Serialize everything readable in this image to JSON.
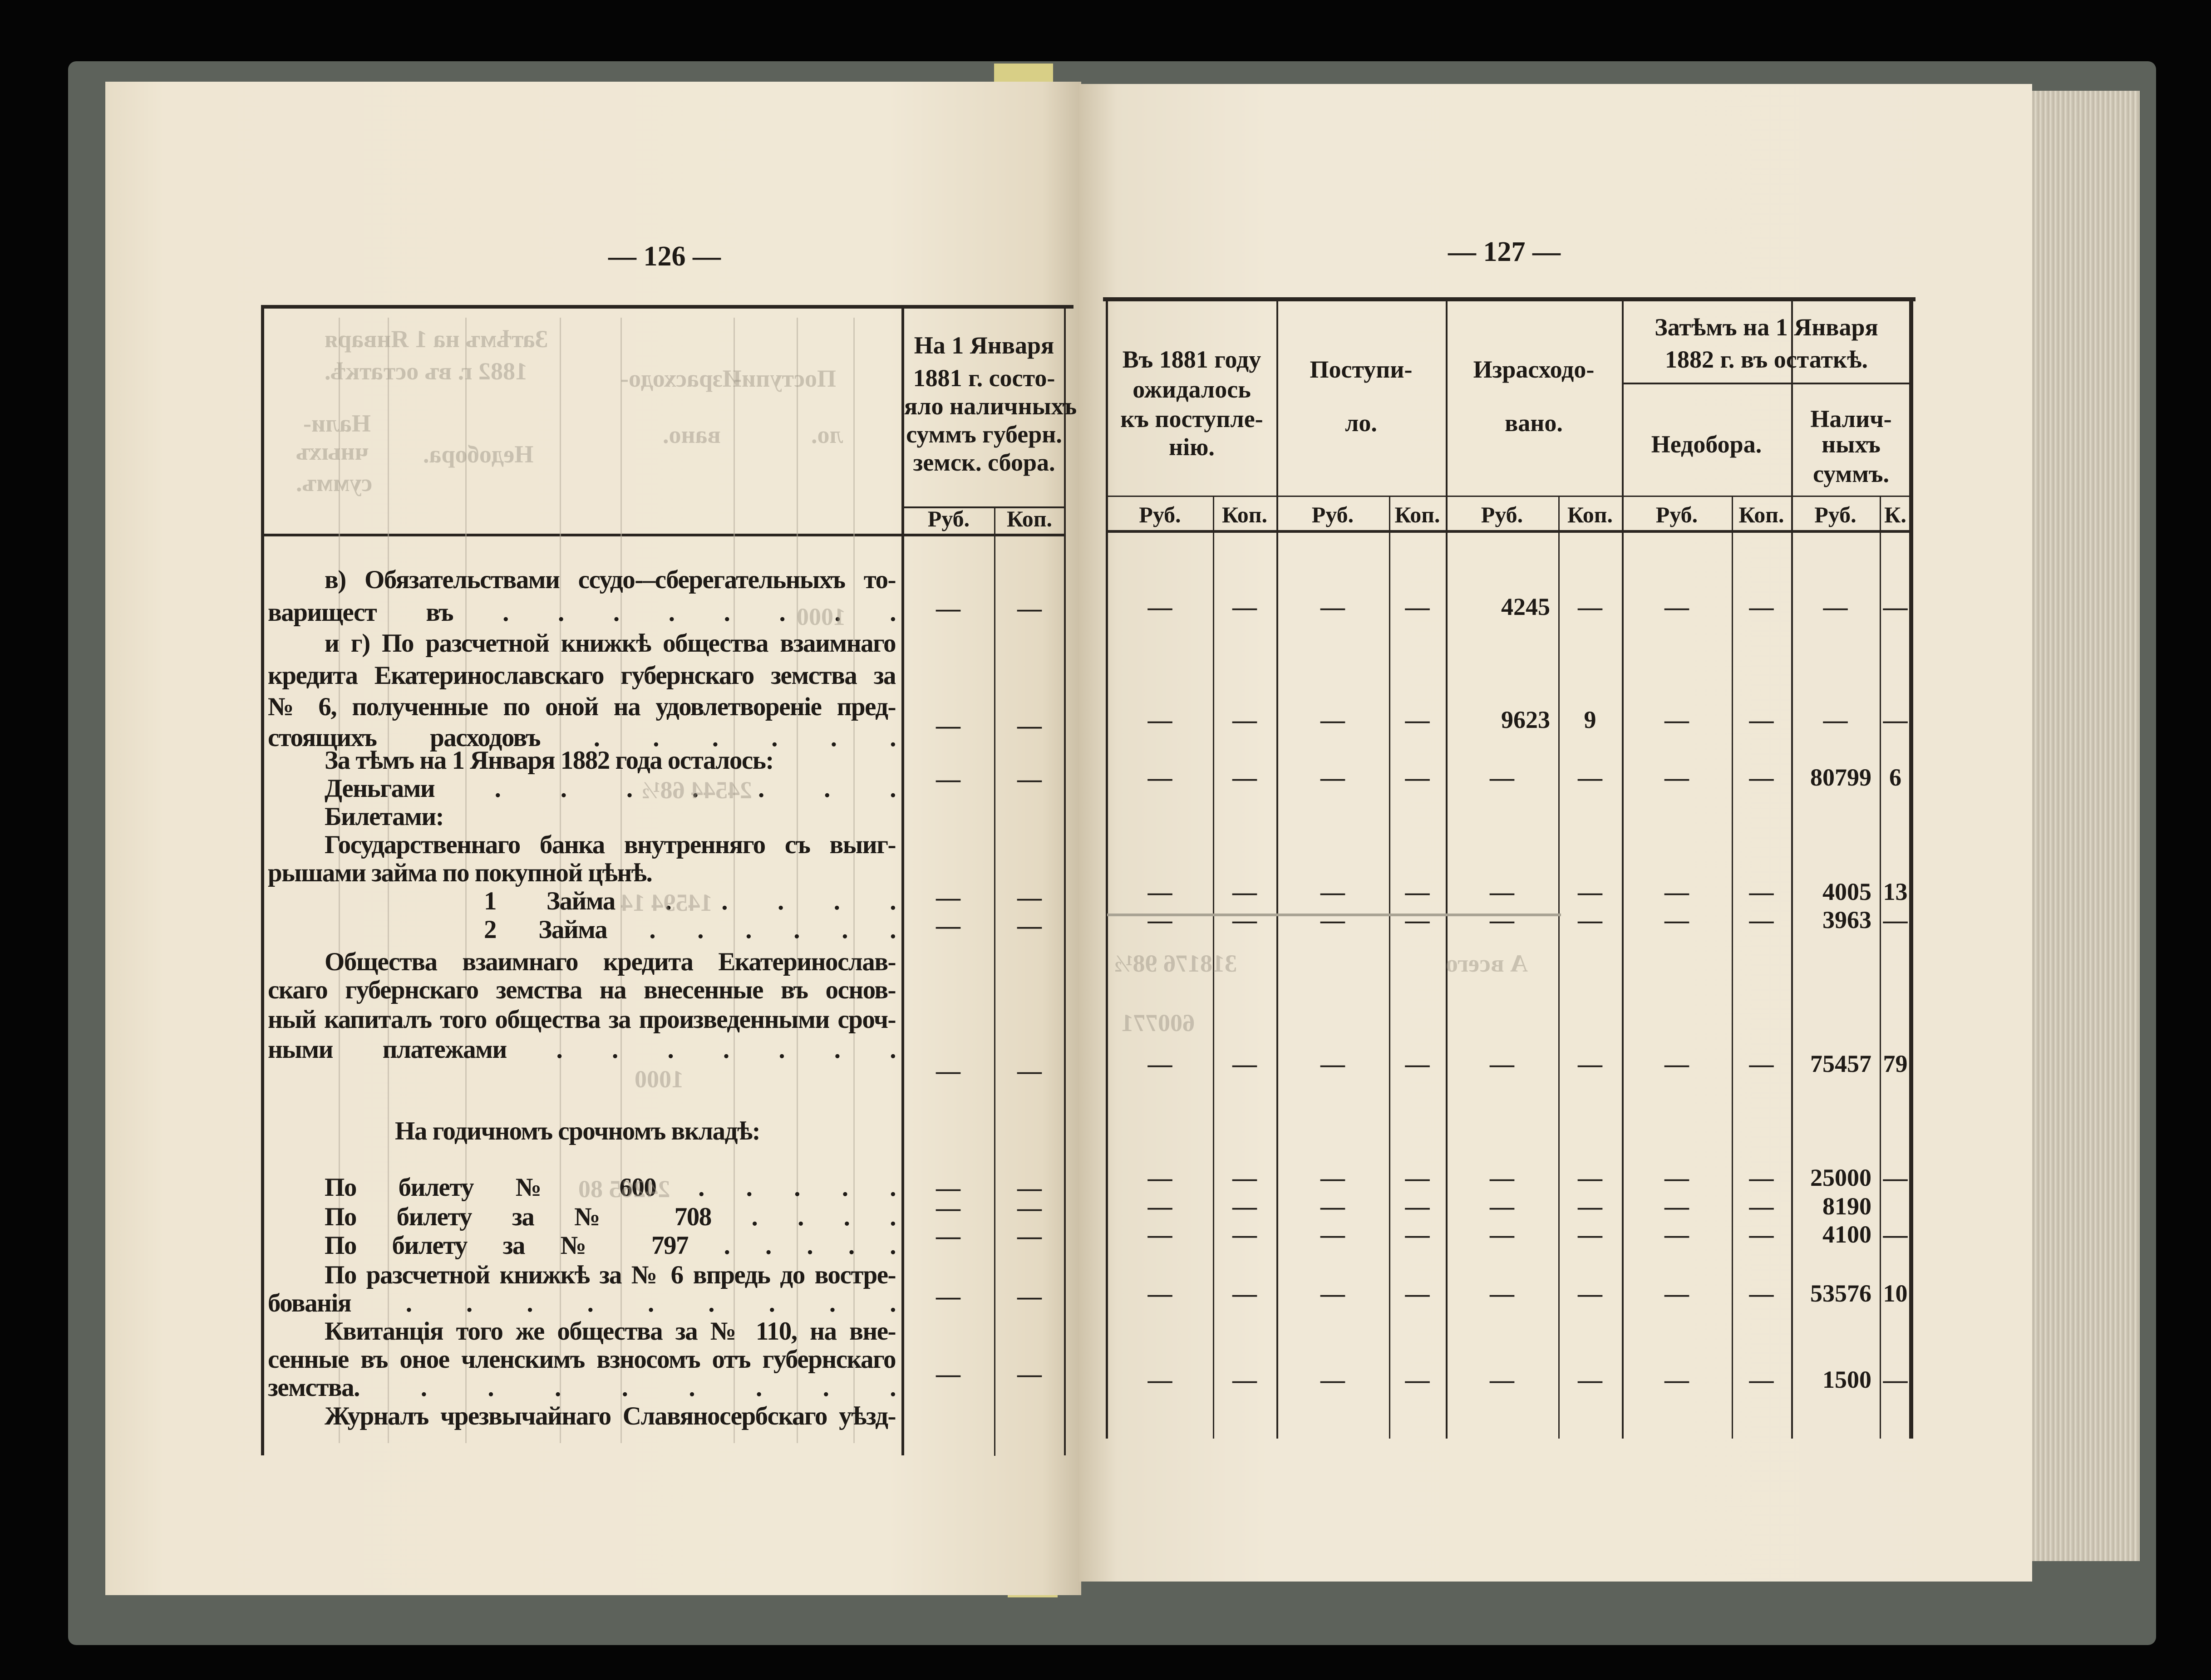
{
  "spread": {
    "left": {
      "page_number": "— 126 —",
      "header": {
        "title_lines": [
          "На 1 Января",
          "1881 г. состо-",
          "яло наличныхъ",
          "суммъ губерн.",
          "земск. сбора."
        ],
        "rub": "Руб.",
        "kop": "Коп."
      },
      "lines": [
        "в) Обязательствами ссудо-–сберегательныхъ то-",
        "варищест въ . . . . . . . .",
        "и г) По разсчетной книжкѣ общества взаимнаго",
        "кредита Екатеринославскаго губернскаго земства за",
        "№ 6, полученные по оной на удовлетвореніе пред-",
        "стоящихъ расходовъ . . . . . .",
        "За тѣмъ на 1 Января 1882 года осталось:",
        "Деньгами . . . . . . .",
        "Билетами:",
        "Государственнаго банка внутренняго съ выиг-",
        "рышами займа по покупной цѣнѣ.",
        "1 Займа . . . . .",
        "2 Займа . . . . . .",
        "Общества взаимнаго кредита Екатеринослав-",
        "скаго губернскаго земства на внесенные въ основ-",
        "ный капиталъ того общества за произведенными сроч-",
        "ными платежами . . . . . . .",
        "На годичномъ срочномъ вкладѣ:",
        "По билету № 600 . . . . .",
        "По билету за № 708 . . . .",
        "По билету за № 797 . . . . .",
        "По разсчетной книжкѣ за № 6 впредь до востре-",
        "бованія . . . . . . . . .",
        "Квитанція того же общества за № 110, на вне-",
        "сенные въ оное членскимъ взносомъ отъ губернскаго",
        "земства. . . . . . . . .",
        "Журналъ чрезвычайнаго Славяносербскаго уѣзд-"
      ],
      "rows": [
        {
          "rub": "—",
          "kop": "—"
        },
        {
          "rub": "—",
          "kop": "—"
        },
        {
          "rub": "—",
          "kop": "—"
        },
        {
          "rub": "—",
          "kop": "—"
        },
        {
          "rub": "—",
          "kop": "—"
        },
        {
          "rub": "—",
          "kop": "—"
        },
        {
          "rub": "—",
          "kop": "—"
        },
        {
          "rub": "—",
          "kop": "—"
        },
        {
          "rub": "—",
          "kop": "—"
        },
        {
          "rub": "—",
          "kop": "—"
        },
        {
          "rub": "—",
          "kop": "—"
        }
      ]
    },
    "right": {
      "page_number": "— 127 —",
      "headers": {
        "expected": [
          "Въ 1881 году",
          "ожидалось",
          "къ поступле-",
          "нію."
        ],
        "received": [
          "Поступи-",
          "ло."
        ],
        "spent": [
          "Израсходо-",
          "вано."
        ],
        "remainder": [
          "Затѣмъ на 1 Января",
          "1882 г. въ остаткѣ."
        ],
        "arrears": [
          "Недобора."
        ],
        "cash": [
          "Налич-",
          "ныхъ",
          "суммъ."
        ],
        "sub": [
          "Руб.",
          "Коп.",
          "Руб.",
          "Коп.",
          "Руб.",
          "Коп.",
          "Руб.",
          "Коп.",
          "Руб.",
          "К."
        ]
      },
      "rows": [
        [
          "—",
          "—",
          "—",
          "—",
          "4245",
          "—",
          "—",
          "—",
          "—",
          "—"
        ],
        [
          "—",
          "—",
          "—",
          "—",
          "9623",
          "9",
          "—",
          "—",
          "—",
          "—"
        ],
        [
          "—",
          "—",
          "—",
          "—",
          "—",
          "—",
          "—",
          "—",
          "80799",
          "6"
        ],
        [
          "—",
          "—",
          "—",
          "—",
          "—",
          "—",
          "—",
          "—",
          "4005",
          "13"
        ],
        [
          "—",
          "—",
          "—",
          "—",
          "—",
          "—",
          "—",
          "—",
          "3963",
          "—"
        ],
        [
          "—",
          "—",
          "—",
          "—",
          "—",
          "—",
          "—",
          "—",
          "75457",
          "79"
        ],
        [
          "—",
          "—",
          "—",
          "—",
          "—",
          "—",
          "—",
          "—",
          "25000",
          "—"
        ],
        [
          "—",
          "—",
          "—",
          "—",
          "—",
          "—",
          "—",
          "—",
          "8190",
          ""
        ],
        [
          "—",
          "—",
          "—",
          "—",
          "—",
          "—",
          "—",
          "—",
          "4100",
          "—"
        ],
        [
          "—",
          "—",
          "—",
          "—",
          "—",
          "—",
          "—",
          "—",
          "53576",
          "10"
        ],
        [
          "—",
          "—",
          "—",
          "—",
          "—",
          "—",
          "—",
          "—",
          "1500",
          "—"
        ]
      ]
    }
  },
  "bleed_through": {
    "left": [
      "Затѣмъ на 1 Января",
      "1882 г. въ остаткѣ.",
      "Израсходо-",
      "вано.",
      "Поступи-",
      "ло.",
      "Нали-",
      "чныхъ",
      "суммъ.",
      "Недобора.",
      "1000",
      "24544 68½",
      "14594 14",
      "1000",
      "24265 80"
    ],
    "right": [
      "318176 98½",
      "600771",
      "А всего"
    ]
  }
}
